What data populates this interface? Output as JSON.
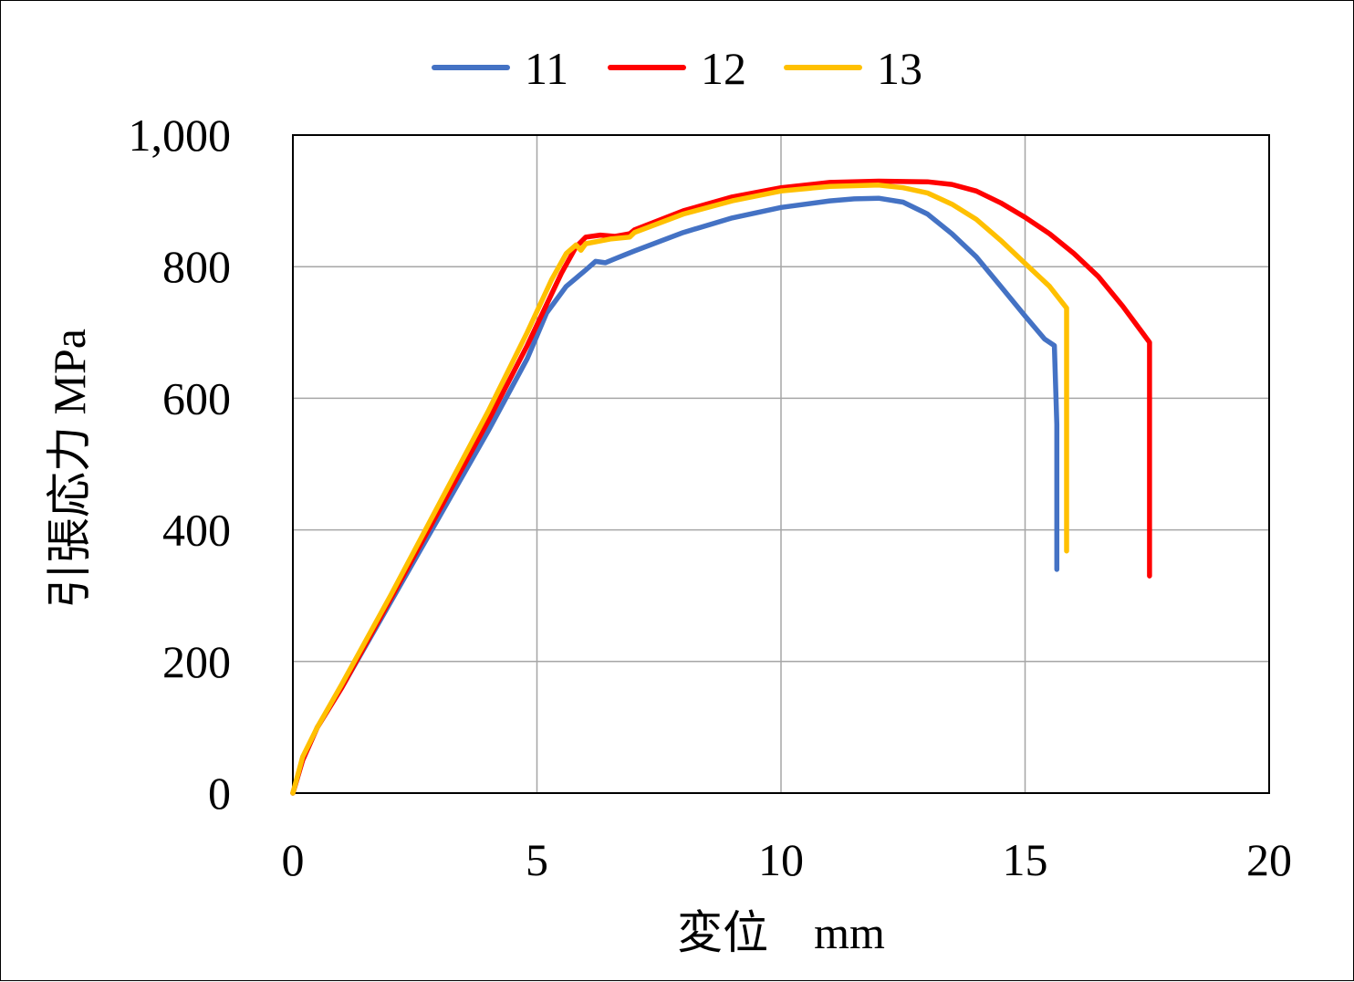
{
  "chart_data": {
    "type": "line",
    "title": "",
    "xlabel": "変位　mm",
    "ylabel": "引張応力 MPa",
    "xlim": [
      0,
      20
    ],
    "ylim": [
      0,
      1000
    ],
    "x_ticks": [
      0,
      5,
      10,
      15,
      20
    ],
    "x_tick_labels": [
      "0",
      "5",
      "10",
      "15",
      "20"
    ],
    "y_ticks": [
      0,
      200,
      400,
      600,
      800,
      1000
    ],
    "y_tick_labels": [
      "0",
      "200",
      "400",
      "600",
      "800",
      "1,000"
    ],
    "grid": true,
    "legend_position": "top-center",
    "series": [
      {
        "name": "11",
        "color": "#4472C4",
        "points": [
          [
            0.0,
            0
          ],
          [
            0.2,
            50
          ],
          [
            0.5,
            100
          ],
          [
            1.0,
            160
          ],
          [
            2.0,
            290
          ],
          [
            3.0,
            420
          ],
          [
            4.0,
            550
          ],
          [
            4.8,
            660
          ],
          [
            5.2,
            730
          ],
          [
            5.6,
            770
          ],
          [
            6.0,
            795
          ],
          [
            6.2,
            808
          ],
          [
            6.4,
            806
          ],
          [
            6.6,
            812
          ],
          [
            6.8,
            818
          ],
          [
            7.0,
            824
          ],
          [
            8.0,
            852
          ],
          [
            9.0,
            874
          ],
          [
            10.0,
            890
          ],
          [
            11.0,
            900
          ],
          [
            11.5,
            903
          ],
          [
            12.0,
            904
          ],
          [
            12.5,
            898
          ],
          [
            13.0,
            880
          ],
          [
            13.5,
            850
          ],
          [
            14.0,
            815
          ],
          [
            14.5,
            770
          ],
          [
            15.0,
            725
          ],
          [
            15.4,
            690
          ],
          [
            15.6,
            680
          ],
          [
            15.65,
            560
          ],
          [
            15.65,
            340
          ]
        ]
      },
      {
        "name": "12",
        "color": "#FF0000",
        "points": [
          [
            0.0,
            0
          ],
          [
            0.2,
            50
          ],
          [
            0.5,
            100
          ],
          [
            1.0,
            160
          ],
          [
            2.0,
            295
          ],
          [
            3.0,
            430
          ],
          [
            4.0,
            565
          ],
          [
            4.8,
            680
          ],
          [
            5.5,
            790
          ],
          [
            5.8,
            830
          ],
          [
            6.0,
            845
          ],
          [
            6.3,
            848
          ],
          [
            6.6,
            846
          ],
          [
            6.9,
            850
          ],
          [
            7.0,
            856
          ],
          [
            8.0,
            885
          ],
          [
            9.0,
            906
          ],
          [
            10.0,
            920
          ],
          [
            11.0,
            928
          ],
          [
            12.0,
            930
          ],
          [
            13.0,
            929
          ],
          [
            13.5,
            925
          ],
          [
            14.0,
            915
          ],
          [
            14.5,
            897
          ],
          [
            15.0,
            875
          ],
          [
            15.5,
            850
          ],
          [
            16.0,
            820
          ],
          [
            16.5,
            785
          ],
          [
            17.0,
            740
          ],
          [
            17.4,
            700
          ],
          [
            17.55,
            685
          ],
          [
            17.55,
            500
          ],
          [
            17.55,
            330
          ]
        ]
      },
      {
        "name": "13",
        "color": "#FFC000",
        "points": [
          [
            0.0,
            0
          ],
          [
            0.2,
            55
          ],
          [
            0.5,
            100
          ],
          [
            1.0,
            165
          ],
          [
            2.0,
            300
          ],
          [
            3.0,
            440
          ],
          [
            4.0,
            580
          ],
          [
            4.8,
            700
          ],
          [
            5.3,
            780
          ],
          [
            5.6,
            820
          ],
          [
            5.8,
            833
          ],
          [
            5.9,
            825
          ],
          [
            6.0,
            835
          ],
          [
            6.5,
            842
          ],
          [
            6.9,
            845
          ],
          [
            7.0,
            852
          ],
          [
            8.0,
            880
          ],
          [
            9.0,
            900
          ],
          [
            10.0,
            915
          ],
          [
            11.0,
            922
          ],
          [
            12.0,
            924
          ],
          [
            12.5,
            920
          ],
          [
            13.0,
            912
          ],
          [
            13.5,
            895
          ],
          [
            14.0,
            872
          ],
          [
            14.5,
            840
          ],
          [
            15.0,
            805
          ],
          [
            15.5,
            770
          ],
          [
            15.85,
            737
          ],
          [
            15.85,
            600
          ],
          [
            15.85,
            368
          ]
        ]
      }
    ]
  }
}
